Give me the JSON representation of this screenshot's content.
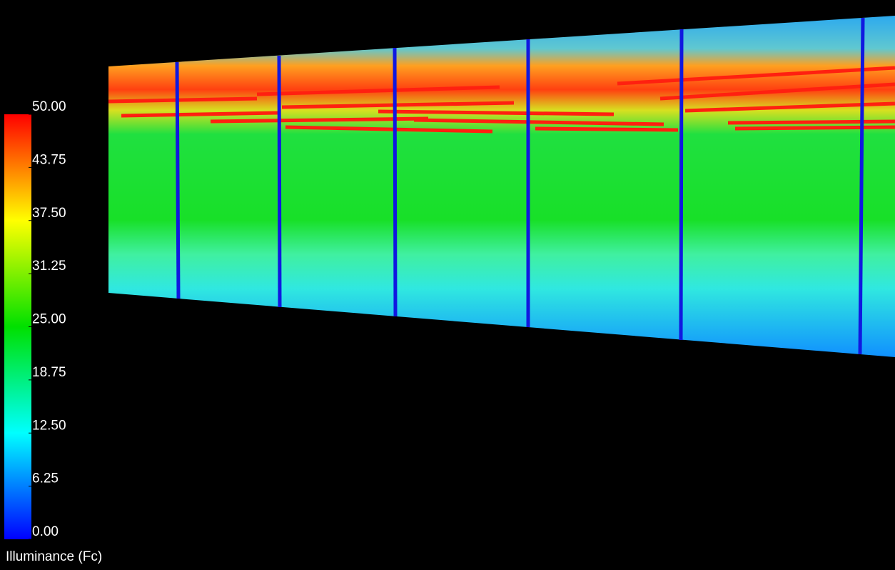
{
  "legend": {
    "title": "Illuminance (Fc)",
    "range": [
      0,
      50
    ],
    "ticks": [
      {
        "value": 0,
        "label": "0.00"
      },
      {
        "value": 6.25,
        "label": "6.25"
      },
      {
        "value": 12.5,
        "label": "12.50"
      },
      {
        "value": 18.75,
        "label": "18.75"
      },
      {
        "value": 25,
        "label": "25.00"
      },
      {
        "value": 31.25,
        "label": "31.25"
      },
      {
        "value": 37.5,
        "label": "37.50"
      },
      {
        "value": 43.75,
        "label": "43.75"
      },
      {
        "value": 50,
        "label": "50.00"
      }
    ]
  }
}
